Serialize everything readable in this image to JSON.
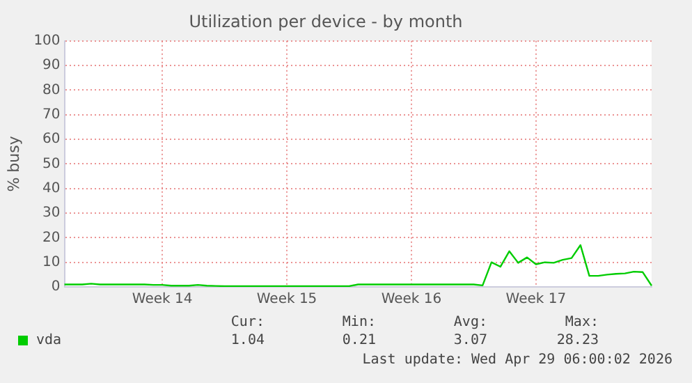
{
  "chart_data": {
    "type": "line",
    "title": "Utilization per device - by month",
    "ylabel": "% busy",
    "categories": [
      null,
      null,
      null,
      null,
      null,
      null,
      null,
      null,
      null,
      null,
      null,
      "Week 14",
      null,
      null,
      null,
      null,
      null,
      null,
      null,
      null,
      null,
      null,
      null,
      null,
      null,
      "Week 15",
      null,
      null,
      null,
      null,
      null,
      null,
      null,
      null,
      null,
      null,
      null,
      null,
      null,
      "Week 16",
      null,
      null,
      null,
      null,
      null,
      null,
      null,
      null,
      null,
      null,
      null,
      null,
      null,
      "Week 17",
      null,
      null,
      null,
      null,
      null,
      null,
      null,
      null,
      null,
      null,
      null,
      null,
      null
    ],
    "series": [
      {
        "name": "vda",
        "color": "#00cc00",
        "values": [
          1,
          1,
          1,
          1.3,
          1,
          1,
          1,
          1,
          1,
          1,
          0.8,
          0.8,
          0.5,
          0.5,
          0.5,
          0.8,
          0.5,
          0.4,
          0.3,
          0.3,
          0.3,
          0.3,
          0.3,
          0.3,
          0.3,
          0.3,
          0.3,
          0.3,
          0.3,
          0.3,
          0.3,
          0.3,
          0.3,
          1,
          1,
          1,
          1,
          1,
          1,
          1,
          1,
          1,
          1,
          1,
          1,
          1,
          1,
          0.6,
          10,
          8.2,
          14.5,
          9.8,
          12,
          9.2,
          10,
          9.8,
          11,
          11.7,
          17,
          4.5,
          4.5,
          5,
          5.3,
          5.5,
          6.2,
          6,
          0.5
        ]
      }
    ],
    "ylim": [
      0,
      100
    ],
    "yticks": [
      0,
      10,
      20,
      30,
      40,
      50,
      60,
      70,
      80,
      90,
      100
    ],
    "grid": true,
    "legend": "bottom left",
    "marker": "none",
    "line_style": "solid",
    "annotations": [
      "Cur:",
      "Min:",
      "Avg:",
      "Max:",
      "1.04",
      "0.21",
      "3.07",
      "28.23",
      "Last update: Wed Apr 29 06:00:02 2026"
    ]
  }
}
